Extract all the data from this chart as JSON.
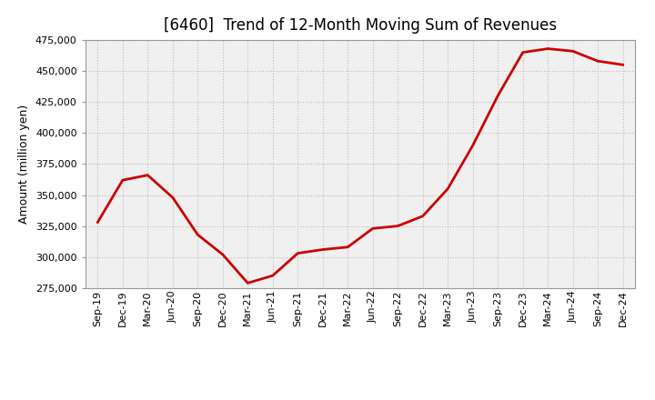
{
  "title": "[6460]  Trend of 12-Month Moving Sum of Revenues",
  "ylabel": "Amount (million yen)",
  "line_color": "#cc0000",
  "background_color": "#ffffff",
  "plot_bg_color": "#f0f0f0",
  "grid_color": "#bbbbbb",
  "xlabels": [
    "Sep-19",
    "Dec-19",
    "Mar-20",
    "Jun-20",
    "Sep-20",
    "Dec-20",
    "Mar-21",
    "Jun-21",
    "Sep-21",
    "Dec-21",
    "Mar-22",
    "Jun-22",
    "Sep-22",
    "Dec-22",
    "Mar-23",
    "Jun-23",
    "Sep-23",
    "Dec-23",
    "Mar-24",
    "Jun-24",
    "Sep-24",
    "Dec-24"
  ],
  "values": [
    328000,
    362000,
    366000,
    348000,
    318000,
    302000,
    279000,
    285000,
    303000,
    306000,
    308000,
    323000,
    325000,
    333000,
    355000,
    390000,
    430000,
    465000,
    468000,
    466000,
    458000,
    455000
  ],
  "ylim": [
    275000,
    475000
  ],
  "yticks": [
    275000,
    300000,
    325000,
    350000,
    375000,
    400000,
    425000,
    450000,
    475000
  ],
  "title_fontsize": 12,
  "axis_fontsize": 8,
  "ylabel_fontsize": 9,
  "line_width": 2.0,
  "figsize": [
    7.2,
    4.4
  ],
  "dpi": 100
}
